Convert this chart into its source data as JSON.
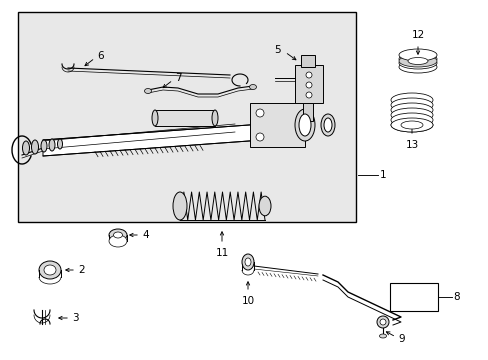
{
  "white": "#ffffff",
  "black": "#000000",
  "light_gray": "#e8e8e8",
  "mid_gray": "#cccccc",
  "dark_gray": "#999999"
}
